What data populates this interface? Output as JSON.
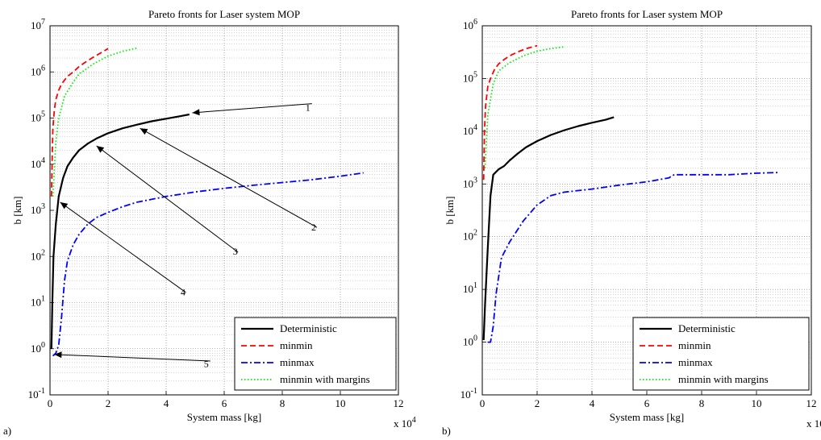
{
  "figure": {
    "panel_labels": [
      "a)",
      "b)"
    ]
  },
  "chart_data": [
    {
      "type": "line",
      "title": "Pareto fronts for Laser system MOP",
      "xlabel": "System mass [kg]",
      "ylabel": "b [km]",
      "x_multiplier_label": "x 10",
      "x_multiplier_exp": "4",
      "xlim": [
        0,
        12
      ],
      "ylim": [
        0.1,
        10000000
      ],
      "yscale": "log",
      "grid": true,
      "legend_position": "bottom-right",
      "x_ticks": [
        "0",
        "2",
        "4",
        "6",
        "8",
        "10",
        "12"
      ],
      "y_ticks": [
        {
          "base": "10",
          "exp": "-1"
        },
        {
          "base": "10",
          "exp": "0"
        },
        {
          "base": "10",
          "exp": "1"
        },
        {
          "base": "10",
          "exp": "2"
        },
        {
          "base": "10",
          "exp": "3"
        },
        {
          "base": "10",
          "exp": "4"
        },
        {
          "base": "10",
          "exp": "5"
        },
        {
          "base": "10",
          "exp": "6"
        },
        {
          "base": "10",
          "exp": "7"
        }
      ],
      "series": [
        {
          "name": "Deterministic",
          "color": "#000000",
          "style": "solid",
          "x": [
            0.05,
            0.08,
            0.12,
            0.2,
            0.3,
            0.45,
            0.6,
            0.8,
            1.0,
            1.3,
            1.6,
            2.0,
            2.5,
            3.0,
            3.5,
            4.0,
            4.5,
            4.8
          ],
          "y": [
            1,
            10,
            100,
            500,
            2000,
            5000,
            9000,
            14000,
            20000,
            28000,
            36000,
            47000,
            60000,
            72000,
            85000,
            97000,
            110000,
            120000
          ]
        },
        {
          "name": "minmin",
          "color": "#ff0000",
          "style": "dashed",
          "x": [
            0.05,
            0.08,
            0.1,
            0.15,
            0.2,
            0.3,
            0.4,
            0.6,
            0.8,
            1.0,
            1.2,
            1.5,
            1.8,
            2.0
          ],
          "y": [
            2000,
            20000,
            60000,
            150000,
            250000,
            400000,
            550000,
            800000,
            1000000,
            1300000,
            1600000,
            2100000,
            2700000,
            3200000
          ]
        },
        {
          "name": "minmax",
          "color": "#0000ff",
          "style": "dashdot",
          "x": [
            0.1,
            0.2,
            0.3,
            0.4,
            0.5,
            0.6,
            0.8,
            1.0,
            1.3,
            1.6,
            2.0,
            2.5,
            3.0,
            4.0,
            5.0,
            6.0,
            7.0,
            8.0,
            9.0,
            10.0,
            10.8
          ],
          "y": [
            0.7,
            0.8,
            1.2,
            5,
            30,
            80,
            180,
            300,
            500,
            700,
            900,
            1200,
            1500,
            2000,
            2500,
            3000,
            3500,
            4000,
            4600,
            5500,
            6500
          ]
        },
        {
          "name": "minmin with margins",
          "color": "#00ee00",
          "style": "dotted",
          "x": [
            0.1,
            0.2,
            0.3,
            0.5,
            0.8,
            1.0,
            1.5,
            2.0,
            2.5,
            3.0
          ],
          "y": [
            2000,
            30000,
            100000,
            300000,
            600000,
            900000,
            1500000,
            2200000,
            2800000,
            3300000
          ]
        }
      ],
      "annotations": [
        {
          "label": "1",
          "tip": [
            4.9,
            130000
          ],
          "tail_label": [
            8.8,
            200000
          ]
        },
        {
          "label": "2",
          "tip": [
            3.1,
            60000
          ],
          "tail_label": [
            9.0,
            500
          ]
        },
        {
          "label": "3",
          "tip": [
            1.6,
            25000
          ],
          "tail_label": [
            6.3,
            150
          ]
        },
        {
          "label": "4",
          "tip": [
            0.35,
            1500
          ],
          "tail_label": [
            4.5,
            20
          ]
        },
        {
          "label": "5",
          "tip": [
            0.15,
            0.75
          ],
          "tail_label": [
            5.3,
            0.55
          ]
        }
      ]
    },
    {
      "type": "line",
      "title": "Pareto fronts for Laser system MOP",
      "xlabel": "System mass [kg]",
      "ylabel": "b [km]",
      "x_multiplier_label": "x 10",
      "x_multiplier_exp": "4",
      "xlim": [
        0,
        12
      ],
      "ylim": [
        0.1,
        1000000
      ],
      "yscale": "log",
      "grid": true,
      "legend_position": "bottom-right",
      "x_ticks": [
        "0",
        "2",
        "4",
        "6",
        "8",
        "10",
        "12"
      ],
      "y_ticks": [
        {
          "base": "10",
          "exp": "-1"
        },
        {
          "base": "10",
          "exp": "0"
        },
        {
          "base": "10",
          "exp": "1"
        },
        {
          "base": "10",
          "exp": "2"
        },
        {
          "base": "10",
          "exp": "3"
        },
        {
          "base": "10",
          "exp": "4"
        },
        {
          "base": "10",
          "exp": "5"
        },
        {
          "base": "10",
          "exp": "6"
        }
      ],
      "series": [
        {
          "name": "Deterministic",
          "color": "#000000",
          "style": "solid",
          "x": [
            0.05,
            0.1,
            0.2,
            0.3,
            0.4,
            0.6,
            0.8,
            1.0,
            1.3,
            1.6,
            2.0,
            2.5,
            3.0,
            3.5,
            4.0,
            4.5,
            4.8
          ],
          "y": [
            1.1,
            5,
            60,
            600,
            1500,
            1900,
            2200,
            2800,
            3800,
            5000,
            6500,
            8500,
            10500,
            12500,
            14500,
            16500,
            18500
          ]
        },
        {
          "name": "minmin",
          "color": "#ff0000",
          "style": "dashed",
          "x": [
            0.05,
            0.08,
            0.12,
            0.2,
            0.3,
            0.45,
            0.6,
            0.8,
            1.0,
            1.3,
            1.6,
            2.0
          ],
          "y": [
            1200,
            10000,
            30000,
            70000,
            100000,
            150000,
            190000,
            230000,
            270000,
            320000,
            370000,
            420000
          ]
        },
        {
          "name": "minmax",
          "color": "#0000ff",
          "style": "dashdot",
          "x": [
            0.2,
            0.3,
            0.4,
            0.5,
            0.7,
            1.0,
            1.5,
            2.0,
            2.5,
            3.0,
            4.0,
            5.0,
            6.0,
            6.8,
            7.0,
            8.0,
            9.0,
            10.0,
            10.8
          ],
          "y": [
            1.0,
            1.0,
            2,
            8,
            40,
            80,
            200,
            400,
            600,
            700,
            800,
            950,
            1100,
            1300,
            1500,
            1500,
            1500,
            1600,
            1650
          ]
        },
        {
          "name": "minmin with margins",
          "color": "#00ee00",
          "style": "dotted",
          "x": [
            0.1,
            0.2,
            0.4,
            0.6,
            1.0,
            1.5,
            2.0,
            2.5,
            3.0
          ],
          "y": [
            2000,
            20000,
            80000,
            140000,
            200000,
            270000,
            330000,
            370000,
            400000
          ]
        }
      ],
      "annotations": []
    }
  ]
}
